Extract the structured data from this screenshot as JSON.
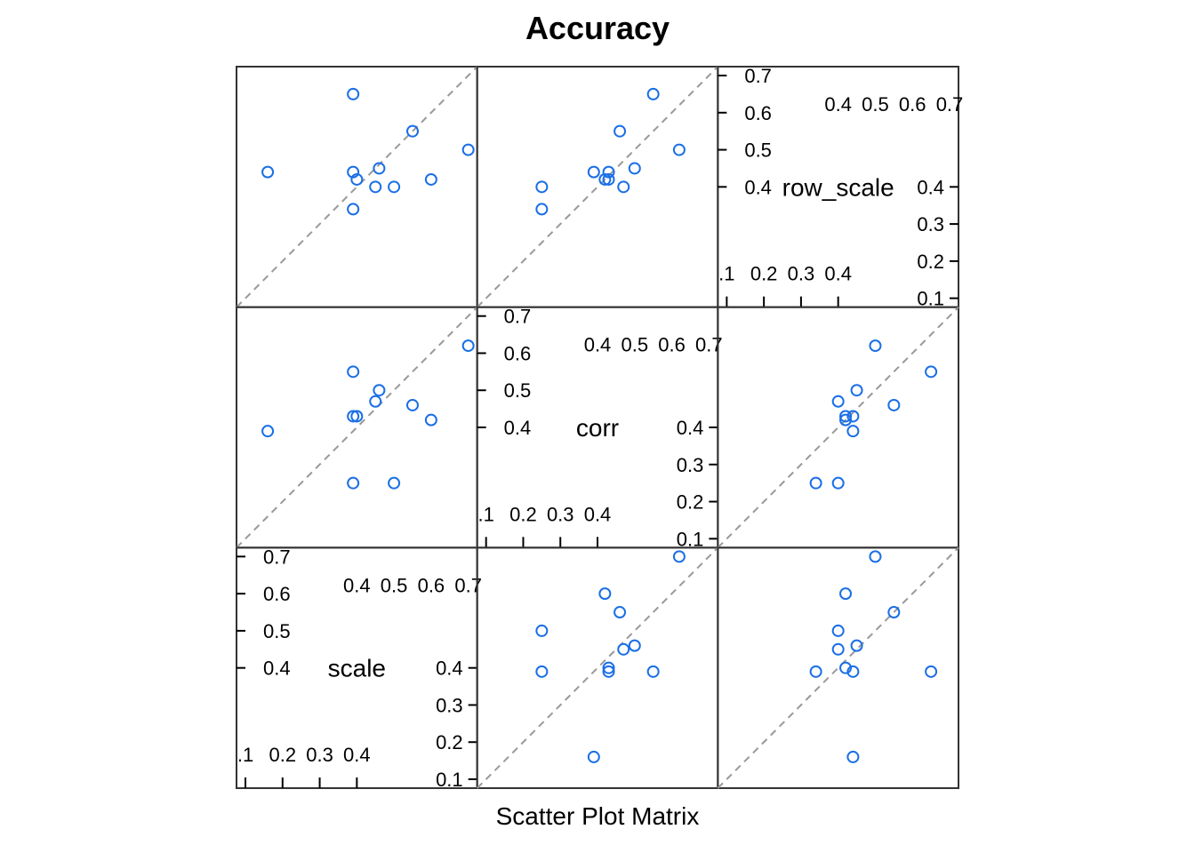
{
  "chart_data": {
    "type": "scatter",
    "subtype": "scatter-matrix",
    "title": "Accuracy",
    "xlabel": "Scatter Plot Matrix",
    "point_color": "#1a6fe6",
    "reference_line": "y = x (dashed, gray)",
    "reference_line_color": "#999999",
    "variables": [
      {
        "name": "scale",
        "range": [
          0.1,
          0.7
        ],
        "upper_ticks": [
          "0.4",
          "0.5",
          "0.6",
          "0.7"
        ],
        "lower_ticks": [
          ".1",
          "0.2",
          "0.3",
          "0.4"
        ],
        "values": [
          0.16,
          0.45,
          0.39,
          0.5,
          0.7,
          0.46,
          0.39,
          0.39,
          0.55,
          0.6,
          0.4
        ]
      },
      {
        "name": "corr",
        "range": [
          0.1,
          0.7
        ],
        "upper_ticks": [
          "0.4",
          "0.5",
          "0.6",
          "0.7"
        ],
        "lower_ticks": [
          ".1",
          "0.2",
          "0.3",
          "0.4"
        ],
        "values": [
          0.39,
          0.47,
          0.43,
          0.25,
          0.62,
          0.5,
          0.55,
          0.25,
          0.46,
          0.42,
          0.43
        ]
      },
      {
        "name": "row_scale",
        "range": [
          0.1,
          0.7
        ],
        "upper_ticks": [
          "0.4",
          "0.5",
          "0.6",
          "0.7"
        ],
        "lower_ticks": [
          ".1",
          "0.2",
          "0.3",
          "0.4"
        ],
        "values": [
          0.44,
          0.4,
          0.44,
          0.4,
          0.5,
          0.45,
          0.65,
          0.34,
          0.55,
          0.42,
          0.42
        ]
      }
    ],
    "series": [
      {
        "name": "scale vs corr",
        "x": [
          0.16,
          0.45,
          0.39,
          0.5,
          0.7,
          0.46,
          0.39,
          0.39,
          0.55,
          0.6,
          0.4
        ],
        "y": [
          0.39,
          0.47,
          0.43,
          0.25,
          0.62,
          0.5,
          0.55,
          0.25,
          0.46,
          0.42,
          0.43
        ]
      },
      {
        "name": "scale vs row_scale",
        "x": [
          0.16,
          0.45,
          0.39,
          0.5,
          0.7,
          0.46,
          0.39,
          0.39,
          0.55,
          0.6,
          0.4
        ],
        "y": [
          0.44,
          0.4,
          0.44,
          0.4,
          0.5,
          0.45,
          0.65,
          0.34,
          0.55,
          0.42,
          0.42
        ]
      },
      {
        "name": "corr vs row_scale",
        "x": [
          0.39,
          0.47,
          0.43,
          0.25,
          0.62,
          0.5,
          0.55,
          0.25,
          0.46,
          0.42,
          0.43
        ],
        "y": [
          0.44,
          0.4,
          0.44,
          0.4,
          0.5,
          0.45,
          0.65,
          0.34,
          0.55,
          0.42,
          0.42
        ]
      }
    ]
  }
}
